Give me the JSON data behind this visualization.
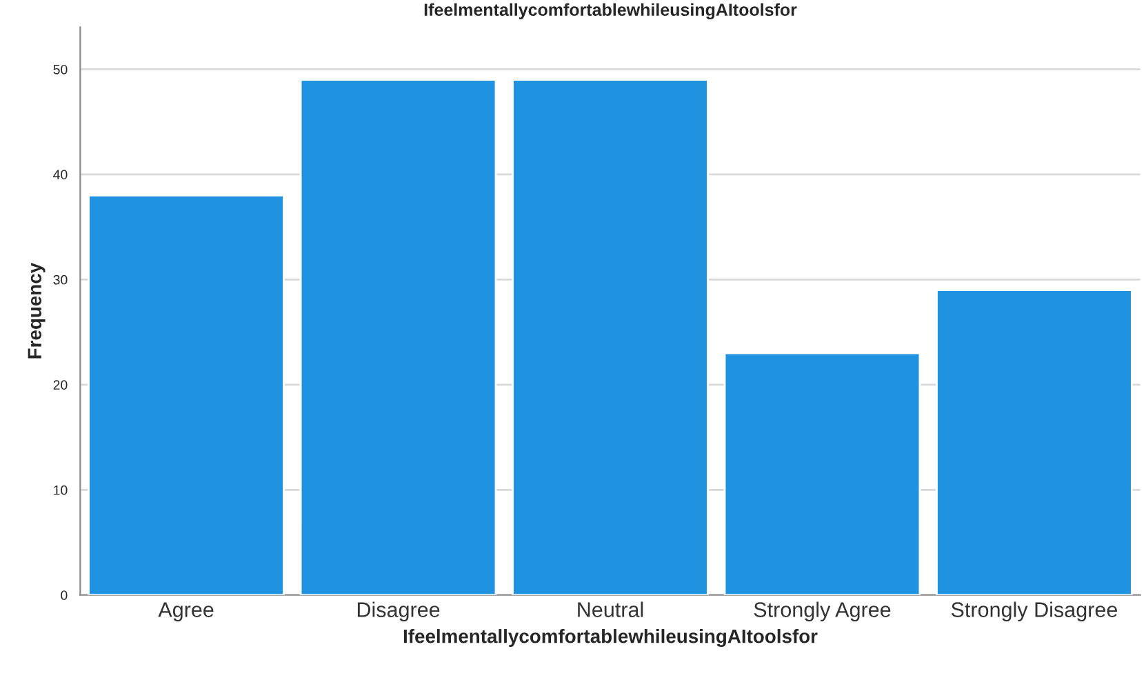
{
  "chart_data": {
    "type": "bar",
    "title": "IfeelmentallycomfortablewhileusingAItoolsfor",
    "xlabel": "IfeelmentallycomfortablewhileusingAItoolsfor",
    "ylabel": "Frequency",
    "categories": [
      "Agree",
      "Disagree",
      "Neutral",
      "Strongly Agree",
      "Strongly Disagree"
    ],
    "values": [
      38,
      49,
      49,
      23,
      29
    ],
    "color": "#1f93e0",
    "ylim": [
      0,
      54
    ],
    "yticks": [
      0,
      10,
      20,
      30,
      40,
      50
    ],
    "grid": "y",
    "legend": false
  }
}
